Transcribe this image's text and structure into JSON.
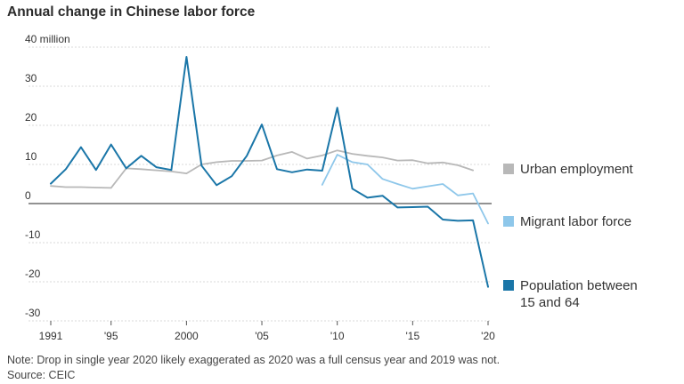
{
  "title": "Annual change in Chinese labor force",
  "note": "Note: Drop in single year 2020 likely exaggerated as 2020 was a full census year and 2019 was not.",
  "source": "Source: CEIC",
  "chart_data": {
    "type": "line",
    "title": "Annual change in Chinese labor force",
    "ylim": [
      -30,
      40
    ],
    "xlim": [
      1991,
      2020
    ],
    "y_ticks": [
      {
        "value": 40,
        "label": "40 million"
      },
      {
        "value": 30,
        "label": "30"
      },
      {
        "value": 20,
        "label": "20"
      },
      {
        "value": 10,
        "label": "10"
      },
      {
        "value": 0,
        "label": "0"
      },
      {
        "value": -10,
        "label": "-10"
      },
      {
        "value": -20,
        "label": "-20"
      },
      {
        "value": -30,
        "label": "-30"
      }
    ],
    "x_ticks": [
      {
        "value": 1991,
        "label": "1991"
      },
      {
        "value": 1995,
        "label": "'95"
      },
      {
        "value": 2000,
        "label": "2000"
      },
      {
        "value": 2005,
        "label": "'05"
      },
      {
        "value": 2010,
        "label": "'10"
      },
      {
        "value": 2015,
        "label": "'15"
      },
      {
        "value": 2020,
        "label": "'20"
      }
    ],
    "grid": "horizontal",
    "legend_position": "right",
    "series": [
      {
        "name": "Urban employment",
        "color": "#b8b8b8",
        "x": [
          1991,
          1992,
          1993,
          1994,
          1995,
          1996,
          1997,
          1998,
          1999,
          2000,
          2001,
          2002,
          2003,
          2004,
          2005,
          2006,
          2007,
          2008,
          2009,
          2010,
          2011,
          2012,
          2013,
          2014,
          2015,
          2016,
          2017,
          2018,
          2019
        ],
        "y": [
          4.5,
          4.2,
          4.2,
          4.1,
          4.0,
          9.0,
          8.8,
          8.5,
          8.2,
          7.7,
          10.0,
          10.6,
          10.9,
          10.9,
          11.0,
          12.3,
          13.2,
          11.5,
          12.3,
          13.6,
          12.7,
          12.2,
          11.8,
          11.0,
          11.1,
          10.3,
          10.5,
          9.8,
          8.5
        ]
      },
      {
        "name": "Migrant labor force",
        "color": "#8ec7ea",
        "x": [
          2009,
          2010,
          2011,
          2012,
          2013,
          2014,
          2015,
          2016,
          2017,
          2018,
          2019,
          2020
        ],
        "y": [
          4.8,
          12.5,
          10.6,
          10.0,
          6.3,
          5.0,
          3.8,
          4.4,
          5.0,
          2.1,
          2.6,
          -5.1
        ]
      },
      {
        "name": "Population between 15 and 64",
        "name_lines": [
          "Population between",
          "15 and 64"
        ],
        "color": "#1a76a8",
        "x": [
          1991,
          1992,
          1993,
          1994,
          1995,
          1996,
          1997,
          1998,
          1999,
          2000,
          2001,
          2002,
          2003,
          2004,
          2005,
          2006,
          2007,
          2008,
          2009,
          2010,
          2011,
          2012,
          2013,
          2014,
          2015,
          2016,
          2017,
          2018,
          2019,
          2020
        ],
        "y": [
          5.1,
          8.8,
          14.4,
          8.6,
          15.1,
          9.0,
          12.2,
          9.3,
          8.6,
          37.5,
          9.7,
          4.7,
          7.0,
          12.2,
          20.2,
          8.8,
          8.0,
          8.7,
          8.4,
          24.5,
          3.8,
          1.5,
          2.0,
          -1.0,
          -0.9,
          -0.8,
          -4.1,
          -4.4,
          -4.3,
          -21.3
        ]
      }
    ]
  }
}
